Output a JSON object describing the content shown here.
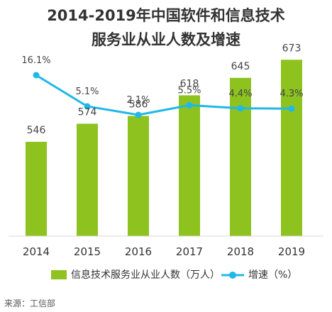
{
  "title_line1": "2014-2019年中国软件和信息技术",
  "title_line2": "服务业从业人数及增速",
  "source": "来源：工信部",
  "chart_data": {
    "type": "bar",
    "categories": [
      "2014",
      "2015",
      "2016",
      "2017",
      "2018",
      "2019"
    ],
    "series": [
      {
        "name": "信息技术服务业从业人数（万人）",
        "type": "bar",
        "values": [
          546,
          574,
          586,
          618,
          645,
          673
        ],
        "labels": [
          "546",
          "574",
          "586",
          "618",
          "645",
          "673"
        ],
        "color": "#8dc21f"
      },
      {
        "name": "增速（%）",
        "type": "line",
        "values": [
          16.1,
          5.1,
          2.1,
          5.5,
          4.4,
          4.3
        ],
        "labels": [
          "16.1%",
          "5.1%",
          "2.1%",
          "5.5%",
          "4.4%",
          "4.3%"
        ],
        "color": "#1fb8e8"
      }
    ],
    "legend_position": "bottom",
    "grid": false
  }
}
